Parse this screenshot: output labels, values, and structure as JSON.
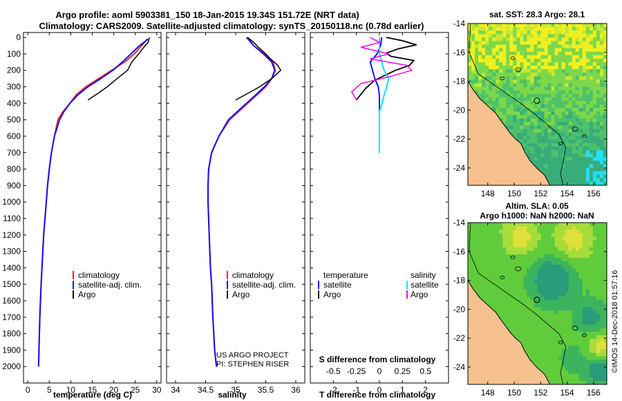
{
  "header": {
    "line1": "Argo profile: aoml 5903381_150 18-Jan-2015 19.34S 151.72E (NRT data)",
    "line2": "Climatology: CARS2009. Satellite-adjusted climatology: synTS_20150118.nc (0.78d earlier)"
  },
  "colors": {
    "climatology": "#ff2020",
    "satellite": "#1010ff",
    "argo": "#000000",
    "sat_salinity": "#00e5ff",
    "argo_salinity_diff": "#ff00ff",
    "land": "#f7c08f"
  },
  "chart_data": [
    {
      "id": "temperature",
      "type": "line",
      "xlabel": "temperature (deg C)",
      "ylabel": "",
      "xlim": [
        -1,
        31
      ],
      "ylim": [
        2100,
        -30
      ],
      "xticks": [
        0,
        5,
        10,
        15,
        20,
        25,
        30
      ],
      "yticks": [
        0,
        100,
        200,
        300,
        400,
        500,
        600,
        700,
        800,
        900,
        1000,
        1100,
        1200,
        1300,
        1400,
        1500,
        1600,
        1700,
        1800,
        1900,
        2000
      ],
      "legend": [
        "climatology",
        "satellite-adj. clim.",
        "Argo"
      ],
      "series": [
        {
          "name": "climatology",
          "x": [
            27.8,
            26.5,
            24.8,
            22.5,
            19.5,
            16.5,
            13.5,
            11.2,
            9.8,
            8.2,
            7.0,
            6.2,
            5.5,
            5.0,
            4.6,
            4.3,
            4.0,
            3.7,
            3.5,
            3.3,
            3.1,
            2.8,
            2.5
          ],
          "y": [
            10,
            50,
            100,
            150,
            200,
            250,
            300,
            350,
            400,
            450,
            500,
            600,
            700,
            800,
            900,
            1000,
            1100,
            1200,
            1300,
            1400,
            1500,
            1700,
            2000
          ]
        },
        {
          "name": "satellite-adj. clim.",
          "x": [
            28.0,
            26.0,
            24.0,
            22.0,
            19.8,
            17.0,
            14.0,
            11.6,
            9.8,
            8.4,
            7.4,
            6.2,
            5.5,
            5.0,
            4.6,
            4.3,
            4.0,
            3.7,
            3.5,
            3.3,
            3.1,
            2.8,
            2.5
          ],
          "y": [
            10,
            50,
            100,
            150,
            200,
            250,
            300,
            350,
            400,
            450,
            500,
            600,
            700,
            800,
            900,
            1000,
            1100,
            1200,
            1300,
            1400,
            1500,
            1700,
            2000
          ]
        },
        {
          "name": "Argo",
          "x": [
            28.3,
            28.0,
            27.0,
            25.8,
            24.2,
            23.2,
            20.8,
            18.5,
            16.3,
            14.0
          ],
          "y": [
            0,
            30,
            60,
            100,
            150,
            200,
            250,
            300,
            340,
            380
          ]
        }
      ]
    },
    {
      "id": "salinity",
      "type": "line",
      "xlabel": "salinity",
      "xlim": [
        33.85,
        36.15
      ],
      "ylim": [
        2100,
        -30
      ],
      "xticks": [
        34,
        34.5,
        35,
        35.5,
        36
      ],
      "legend": [
        "climatology",
        "satellite-adj. clim.",
        "Argo"
      ],
      "series": [
        {
          "name": "climatology",
          "x": [
            35.2,
            35.3,
            35.48,
            35.62,
            35.66,
            35.6,
            35.5,
            35.35,
            35.2,
            35.05,
            34.9,
            34.72,
            34.6,
            34.55,
            34.54,
            34.54,
            34.55,
            34.56,
            34.57,
            34.58,
            34.6,
            34.62,
            34.65,
            34.68
          ],
          "y": [
            0,
            50,
            100,
            150,
            200,
            250,
            300,
            350,
            400,
            450,
            500,
            600,
            700,
            800,
            900,
            1000,
            1100,
            1200,
            1300,
            1400,
            1500,
            1700,
            1900,
            2000
          ]
        },
        {
          "name": "satellite-adj. clim.",
          "x": [
            35.18,
            35.3,
            35.46,
            35.6,
            35.65,
            35.6,
            35.48,
            35.33,
            35.18,
            35.03,
            34.88,
            34.72,
            34.6,
            34.55,
            34.54,
            34.54,
            34.55,
            34.56,
            34.57,
            34.58,
            34.6,
            34.62,
            34.65,
            34.68
          ],
          "y": [
            0,
            50,
            100,
            150,
            200,
            250,
            300,
            350,
            400,
            450,
            500,
            600,
            700,
            800,
            900,
            1000,
            1100,
            1200,
            1300,
            1400,
            1500,
            1700,
            1900,
            2000
          ]
        },
        {
          "name": "Argo",
          "x": [
            35.2,
            35.3,
            35.38,
            35.5,
            35.58,
            35.7,
            35.75,
            35.6,
            35.4,
            35.2,
            35.0
          ],
          "y": [
            0,
            30,
            60,
            100,
            130,
            170,
            200,
            250,
            300,
            340,
            380
          ]
        }
      ]
    },
    {
      "id": "difference",
      "type": "line",
      "xlabel": "T difference from climatology",
      "secondary_xlabel": "S difference from climatology",
      "xlim": [
        -3,
        3
      ],
      "ylim": [
        2100,
        -30
      ],
      "xticks": [
        -2,
        -1,
        0,
        1,
        2
      ],
      "secondary_xticks": [
        "-0.5",
        "-0.25",
        "0",
        "0.25",
        "0.5"
      ],
      "legend_titles": [
        "temperature",
        "salinity"
      ],
      "legend": [
        "satellite",
        "Argo",
        "satellite",
        "Argo"
      ],
      "series": [
        {
          "name": "T satellite",
          "x": [
            0.1,
            0.05,
            -0.1,
            -0.4,
            -0.3,
            -0.2,
            -0.05,
            0.0,
            0.0,
            0.0,
            0.0
          ],
          "y": [
            0,
            50,
            100,
            150,
            200,
            250,
            300,
            350,
            400,
            500,
            700
          ]
        },
        {
          "name": "T Argo",
          "x": [
            0.3,
            1.0,
            1.6,
            0.8,
            0.3,
            0.5,
            1.5,
            1.3,
            0.7,
            -0.2,
            -0.6,
            -1.0
          ],
          "y": [
            0,
            20,
            45,
            70,
            95,
            115,
            140,
            170,
            200,
            260,
            310,
            380
          ]
        },
        {
          "name": "S satellite",
          "x": [
            0.0,
            0.0,
            0.05,
            0.1,
            0.08,
            0.05,
            0.03,
            0.0,
            0.0,
            0.0,
            0.0,
            0.0
          ],
          "y": [
            0,
            100,
            200,
            250,
            300,
            350,
            400,
            450,
            500,
            550,
            600,
            700
          ]
        },
        {
          "name": "S Argo",
          "x": [
            -0.1,
            0.0,
            -0.2,
            0.1,
            -0.1,
            0.3,
            0.35,
            0.1,
            -0.2,
            -0.3,
            -0.25
          ],
          "y": [
            0,
            30,
            60,
            100,
            130,
            170,
            200,
            240,
            280,
            330,
            380
          ]
        }
      ]
    },
    {
      "id": "sst_map",
      "type": "heatmap",
      "title": "sat. SST: 28.3  Argo: 28.1",
      "xticks": [
        148,
        150,
        152,
        154,
        156
      ],
      "yticks": [
        -14,
        -16,
        -18,
        -20,
        -22,
        -24
      ],
      "xlim": [
        146.5,
        157
      ],
      "ylim": [
        -14,
        -25.2
      ],
      "argo_position": [
        151.72,
        -19.34
      ]
    },
    {
      "id": "sla_map",
      "type": "heatmap",
      "title_line1": "Altim. SLA: 0.05",
      "title_line2": "Argo h1000: NaN h2000: NaN",
      "xticks": [
        148,
        150,
        152,
        154,
        156
      ],
      "yticks": [
        -14,
        -16,
        -18,
        -20,
        -22,
        -24
      ],
      "xlim": [
        146.5,
        157
      ],
      "ylim": [
        -14,
        -25.2
      ],
      "argo_position": [
        151.72,
        -19.34
      ]
    }
  ],
  "labels": {
    "leg_climatology": "climatology",
    "leg_satellite_adj": "satellite-adj. clim.",
    "leg_argo": "Argo",
    "leg_temperature": "temperature",
    "leg_salinity": "salinity",
    "leg_satellite": "satellite",
    "project_line1": "US ARGO PROJECT",
    "project_line2": "PI: STEPHEN RISER",
    "watermark": "©IMOS 14-Dec-2018 01:57:16"
  }
}
